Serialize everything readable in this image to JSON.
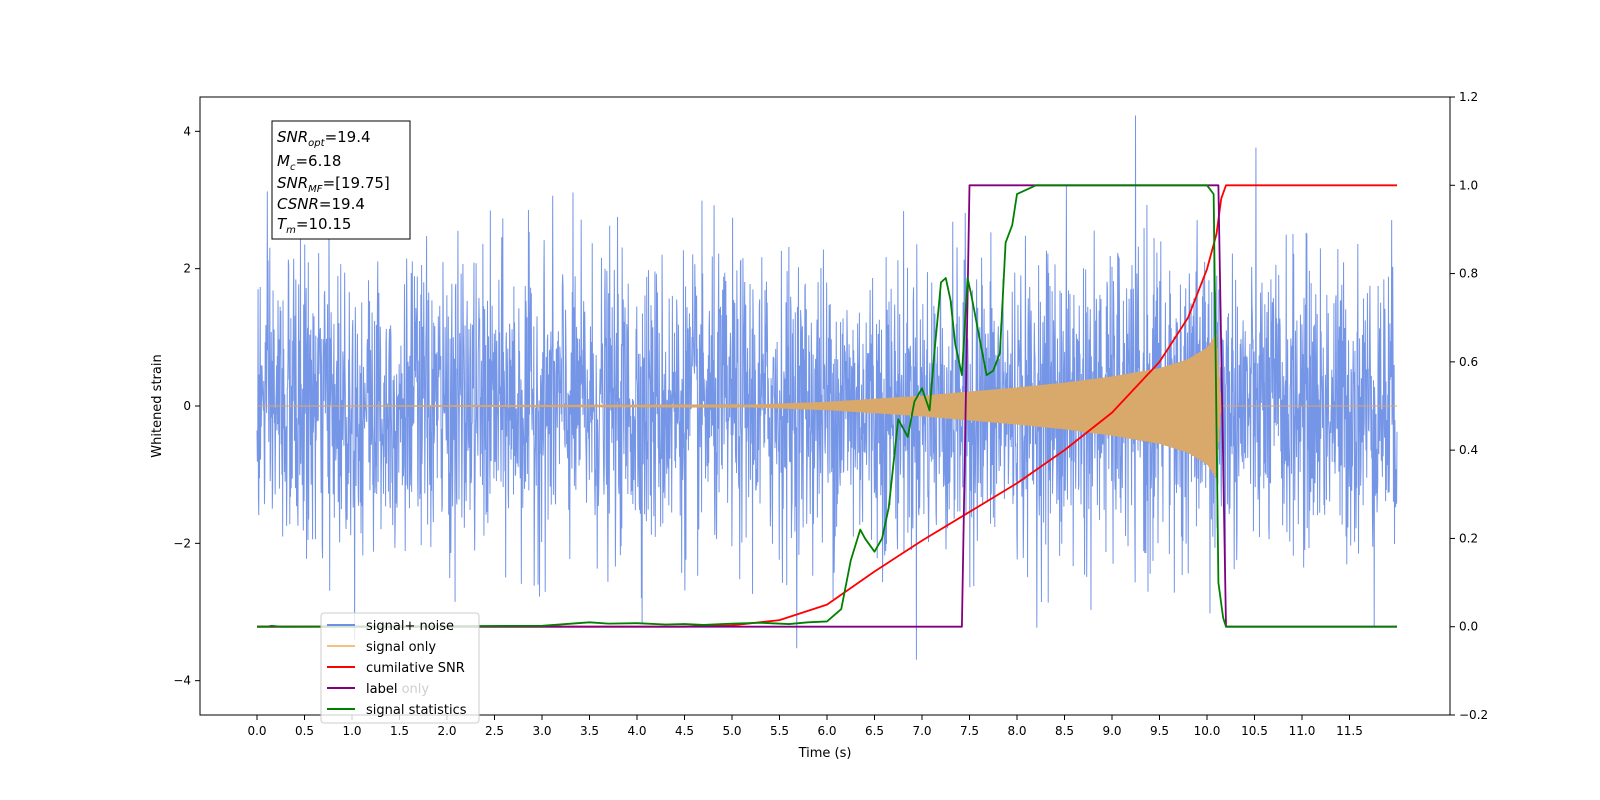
{
  "chart_data": {
    "type": "line",
    "xlabel": "Time (s)",
    "ylabel": "Whitened strain",
    "xlim": [
      -0.6,
      12.57
    ],
    "ylim_left": [
      -4.5,
      4.5
    ],
    "ylim_right": [
      -0.2,
      1.2
    ],
    "x_ticks": [
      "0.0",
      "0.5",
      "1.0",
      "1.5",
      "2.0",
      "2.5",
      "3.0",
      "3.5",
      "4.0",
      "4.5",
      "5.0",
      "5.5",
      "6.0",
      "6.5",
      "7.0",
      "7.5",
      "8.0",
      "8.5",
      "9.0",
      "9.5",
      "10.0",
      "10.5",
      "11.0",
      "11.5"
    ],
    "y_ticks_left": [
      "−4",
      "−2",
      "0",
      "2",
      "4"
    ],
    "y_ticks_right": [
      "−0.2",
      "0.0",
      "0.2",
      "0.4",
      "0.6",
      "0.8",
      "1.0",
      "1.2"
    ],
    "annotation": {
      "snr_opt": "19.4",
      "mc": "6.18",
      "snr_mf": "[19.75]",
      "csnr": "19.4",
      "tm": "10.15"
    },
    "legend_position": "bottom-left",
    "legend": [
      "signal+ noise",
      "signal only",
      "cumilative SNR",
      "label",
      "signal statistics"
    ],
    "legend_ghost_text": "label only",
    "series": [
      {
        "name": "signal+ noise",
        "axis": "left",
        "color": "#6e8fe6",
        "noise_x_range": [
          0.0,
          12.0
        ],
        "noise_envelope_approx": [
          -3.6,
          4.1
        ]
      },
      {
        "name": "signal only",
        "axis": "left",
        "color": "#d9a86b",
        "envelope_x": [
          0.0,
          5.0,
          6.0,
          7.0,
          8.0,
          8.5,
          9.0,
          9.5,
          9.8,
          10.0,
          10.1,
          10.15,
          12.0
        ],
        "envelope_y": [
          0.0,
          0.01,
          0.06,
          0.15,
          0.27,
          0.34,
          0.43,
          0.55,
          0.68,
          0.85,
          1.05,
          0.0,
          0.0
        ]
      },
      {
        "name": "cumilative SNR",
        "axis": "right",
        "color": "#ff0000",
        "x": [
          0.0,
          4.5,
          5.0,
          5.5,
          6.0,
          6.5,
          7.0,
          7.5,
          8.0,
          8.5,
          9.0,
          9.5,
          9.8,
          10.0,
          10.1,
          10.15,
          10.2,
          12.0
        ],
        "y": [
          0.0,
          0.0,
          0.003,
          0.015,
          0.05,
          0.125,
          0.195,
          0.26,
          0.325,
          0.4,
          0.485,
          0.6,
          0.7,
          0.81,
          0.89,
          0.97,
          1.0,
          1.0
        ]
      },
      {
        "name": "label",
        "axis": "right",
        "color": "#800080",
        "x": [
          0.0,
          7.42,
          7.5,
          10.12,
          10.2,
          12.0
        ],
        "y": [
          0.0,
          0.0,
          1.0,
          1.0,
          0.0,
          0.0
        ]
      },
      {
        "name": "signal statistics",
        "axis": "right",
        "color": "#008000",
        "x": [
          0.0,
          0.1,
          0.15,
          0.25,
          3.0,
          3.5,
          3.7,
          4.0,
          4.3,
          4.5,
          4.7,
          5.0,
          5.3,
          5.6,
          5.8,
          6.0,
          6.15,
          6.25,
          6.35,
          6.4,
          6.5,
          6.58,
          6.65,
          6.75,
          6.85,
          6.92,
          7.0,
          7.08,
          7.13,
          7.2,
          7.25,
          7.3,
          7.35,
          7.42,
          7.48,
          7.52,
          7.6,
          7.68,
          7.75,
          7.82,
          7.88,
          7.95,
          8.0,
          8.1,
          8.2,
          8.5,
          9.0,
          9.5,
          10.0,
          10.07,
          10.12,
          10.17,
          10.2,
          12.0
        ],
        "y": [
          0.0,
          0.0,
          0.002,
          0.0,
          0.002,
          0.01,
          0.007,
          0.008,
          0.005,
          0.006,
          0.004,
          0.007,
          0.009,
          0.006,
          0.01,
          0.012,
          0.04,
          0.15,
          0.22,
          0.2,
          0.17,
          0.2,
          0.27,
          0.47,
          0.43,
          0.51,
          0.54,
          0.49,
          0.62,
          0.78,
          0.79,
          0.74,
          0.64,
          0.57,
          0.79,
          0.75,
          0.66,
          0.57,
          0.58,
          0.62,
          0.87,
          0.91,
          0.98,
          0.99,
          1.0,
          1.0,
          1.0,
          1.0,
          1.0,
          0.98,
          0.1,
          0.02,
          0.0,
          0.0
        ]
      }
    ]
  }
}
